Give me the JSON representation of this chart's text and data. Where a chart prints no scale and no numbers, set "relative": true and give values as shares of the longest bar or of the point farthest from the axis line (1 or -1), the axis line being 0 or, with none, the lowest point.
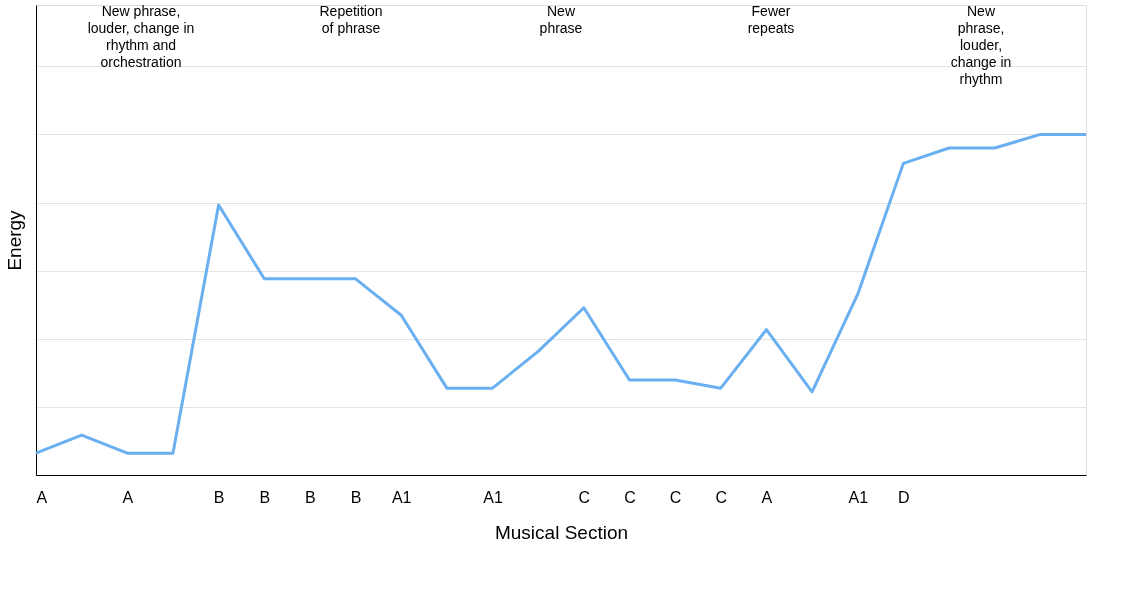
{
  "chart_data": {
    "type": "line",
    "relative": true,
    "xlabel": "Musical Section",
    "ylabel": "Energy",
    "categories": [
      "A",
      null,
      "A",
      null,
      "B",
      "B",
      "B",
      "B",
      "A1",
      null,
      "A1",
      null,
      "C",
      "C",
      "C",
      "C",
      "A",
      null,
      "A1",
      "D",
      null,
      null,
      null,
      null
    ],
    "series": [
      {
        "color": "#6aaff0",
        "values": [
          0.064,
          0.117,
          0.064,
          0.064,
          0.793,
          0.576,
          0.576,
          0.576,
          0.469,
          0.255,
          0.255,
          0.363,
          0.491,
          0.279,
          0.279,
          0.255,
          0.427,
          0.244,
          0.531,
          0.915,
          0.96,
          0.96,
          1,
          1
        ]
      }
    ],
    "annotations": [
      "New phrase,\nlouder, change in\nrhythm and\norchestration",
      "Repetition\nof phrase",
      "New\nphrase",
      "Fewer\nrepeats",
      "New\nphrase,\nlouder,\nchange in\nrhythm"
    ],
    "grid": "y",
    "legend": false,
    "marker": "none",
    "line_style": "solid"
  }
}
